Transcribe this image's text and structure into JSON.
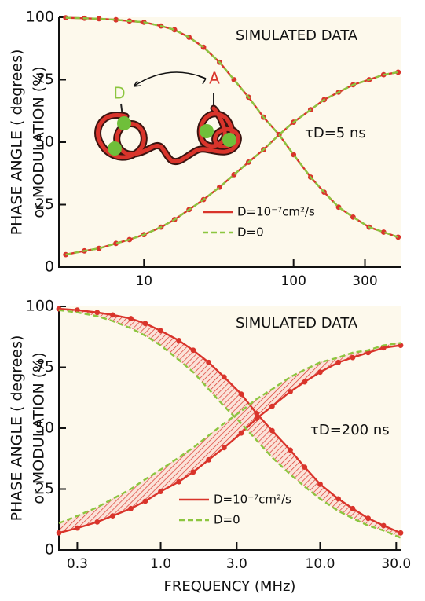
{
  "chart_data": [
    {
      "type": "line",
      "log_x": true,
      "ylabel": [
        "PHASE ANGLE ( degrees)",
        "or MODULATION (%)"
      ],
      "annotations": [
        "SIMULATED DATA",
        "τD=5 ns",
        "D",
        "A"
      ],
      "legend": "lower center",
      "xlim": [
        2.7,
        520
      ],
      "xticks": [
        10,
        100,
        300
      ],
      "ylim": [
        0,
        100
      ],
      "yticks": [
        0,
        25,
        50,
        75,
        100
      ],
      "x": [
        3,
        4,
        5,
        6.5,
        8,
        10,
        13,
        16,
        20,
        25,
        32,
        40,
        50,
        63,
        80,
        100,
        130,
        160,
        200,
        250,
        320,
        400,
        500
      ],
      "series": [
        {
          "name": "D=10⁻⁷cm²/s",
          "color": "#d9342b",
          "style": "solid",
          "markers": true,
          "values": [
            5,
            6.5,
            7.5,
            9.5,
            11,
            13,
            16,
            19,
            23,
            27,
            32,
            37,
            42,
            47,
            53,
            58,
            63,
            67,
            70,
            73,
            75,
            77,
            78
          ]
        },
        {
          "color": "#d9342b",
          "style": "solid",
          "markers": true,
          "values": [
            99.8,
            99.6,
            99.4,
            99,
            98.5,
            98,
            96.5,
            95,
            92,
            88,
            82,
            75,
            68,
            60,
            53,
            45,
            36,
            30,
            24,
            20,
            16,
            14,
            12
          ]
        },
        {
          "name": "D=0",
          "color": "#8cc63f",
          "style": "dashed",
          "markers": false,
          "values": [
            5,
            6.5,
            7.5,
            9.5,
            11,
            13,
            16,
            19,
            23,
            27,
            32,
            37,
            42,
            47,
            53,
            58,
            63,
            67,
            70,
            73,
            75,
            77,
            78
          ]
        },
        {
          "color": "#8cc63f",
          "style": "dashed",
          "markers": false,
          "values": [
            99.8,
            99.6,
            99.4,
            99,
            98.5,
            98,
            96.5,
            95,
            92,
            88,
            82,
            75,
            68,
            60,
            53,
            45,
            36,
            30,
            24,
            20,
            16,
            14,
            12
          ]
        }
      ]
    },
    {
      "type": "line",
      "log_x": true,
      "hatch": true,
      "ylabel": [
        "PHASE ANGLE ( degrees)",
        "or MODULATION (%)"
      ],
      "xlabel": "FREQUENCY (MHz)",
      "annotations": [
        "SIMULATED DATA",
        "τD=200 ns"
      ],
      "legend": "lower center",
      "xlim": [
        0.23,
        32
      ],
      "xticks": [
        0.3,
        {
          "value": 1,
          "label": "1.0"
        },
        {
          "value": 3,
          "label": "3.0"
        },
        {
          "value": 10,
          "label": "10.0"
        },
        {
          "value": 30,
          "label": "30.0"
        }
      ],
      "ylim": [
        0,
        100
      ],
      "yticks": [
        0,
        25,
        50,
        75,
        100
      ],
      "x": [
        0.23,
        0.3,
        0.4,
        0.5,
        0.65,
        0.8,
        1,
        1.3,
        1.6,
        2,
        2.5,
        3.2,
        4,
        5,
        6.5,
        8,
        10,
        13,
        16,
        20,
        25,
        32
      ],
      "series": [
        {
          "name": "D=10⁻⁷cm²/s",
          "color": "#d9342b",
          "style": "solid",
          "markers": true,
          "values": [
            7,
            9,
            11.5,
            14,
            17,
            20,
            24,
            28,
            32,
            37,
            42,
            48,
            54,
            59,
            65,
            69,
            73,
            77,
            79,
            81,
            83,
            84
          ]
        },
        {
          "color": "#d9342b",
          "style": "solid",
          "markers": true,
          "values": [
            99,
            98.5,
            97.5,
            96.5,
            95,
            93,
            90,
            86,
            82,
            77,
            71,
            64,
            56,
            49,
            41,
            34,
            27,
            21,
            17,
            13,
            10,
            7
          ]
        },
        {
          "name": "D=0",
          "color": "#8cc63f",
          "style": "dashed",
          "markers": false,
          "values": [
            11,
            14,
            17.5,
            21,
            25,
            29,
            33,
            38,
            42,
            47,
            52,
            57,
            62,
            66,
            71,
            74,
            77,
            79,
            81,
            82,
            84,
            85
          ]
        },
        {
          "color": "#8cc63f",
          "style": "dashed",
          "markers": false,
          "values": [
            98.5,
            97.5,
            96,
            94,
            91,
            88,
            84,
            78,
            73,
            66,
            59,
            52,
            45,
            38,
            31,
            26,
            21,
            16,
            13,
            10,
            8,
            5
          ]
        }
      ]
    }
  ]
}
